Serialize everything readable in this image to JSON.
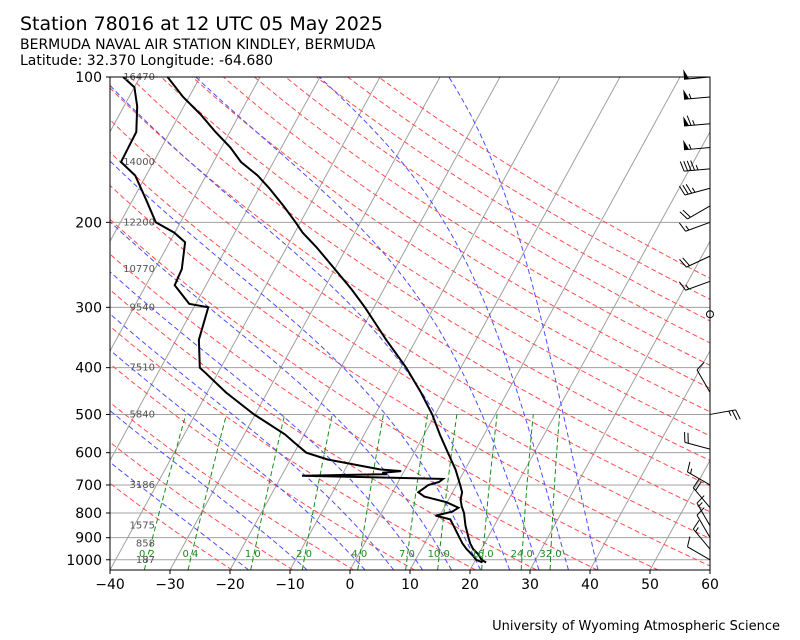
{
  "header": {
    "title": "Station 78016 at 12 UTC 05 May 2025",
    "station_name": "BERMUDA NAVAL AIR STATION KINDLEY, BERMUDA",
    "location": "Latitude: 32.370 Longitude: -64.680"
  },
  "footer": {
    "credit": "University of Wyoming Atmospheric Science"
  },
  "chart_data": {
    "type": "skew-t",
    "xlabel": "",
    "ylabel": "",
    "xlim": [
      -40,
      60
    ],
    "ylim": [
      1050,
      100
    ],
    "y_scale": "log",
    "grid": true,
    "x_ticks": [
      "−40",
      "−30",
      "−20",
      "−10",
      "0",
      "10",
      "20",
      "30",
      "40",
      "50",
      "60"
    ],
    "x_tick_values": [
      -40,
      -30,
      -20,
      -10,
      0,
      10,
      20,
      30,
      40,
      50,
      60
    ],
    "pressure_ticks": [
      100,
      200,
      300,
      400,
      500,
      600,
      700,
      800,
      900,
      1000
    ],
    "height_labels": [
      {
        "p": 100,
        "label": "16470"
      },
      {
        "p": 150,
        "label": "14000"
      },
      {
        "p": 200,
        "label": "12200"
      },
      {
        "p": 250,
        "label": "10770"
      },
      {
        "p": 300,
        "label": "9540"
      },
      {
        "p": 400,
        "label": "7510"
      },
      {
        "p": 500,
        "label": "5840"
      },
      {
        "p": 700,
        "label": "3186"
      },
      {
        "p": 850,
        "label": "1575"
      },
      {
        "p": 925,
        "label": "858"
      },
      {
        "p": 1000,
        "label": "187"
      }
    ],
    "mixing_ratio_labels": [
      "0.2",
      "0.4",
      "1.0",
      "2.0",
      "4.0",
      "7.0",
      "10.0",
      "16.0",
      "24.0",
      "32.0"
    ],
    "temperature": [
      [
        1013,
        22.0
      ],
      [
        1000,
        21.0
      ],
      [
        975,
        20.0
      ],
      [
        950,
        18.6
      ],
      [
        925,
        17.6
      ],
      [
        900,
        16.8
      ],
      [
        850,
        15.2
      ],
      [
        800,
        13.8
      ],
      [
        775,
        12.8
      ],
      [
        750,
        12.0
      ],
      [
        725,
        11.6
      ],
      [
        700,
        10.6
      ],
      [
        650,
        8.4
      ],
      [
        600,
        5.6
      ],
      [
        550,
        2.6
      ],
      [
        500,
        -0.5
      ],
      [
        450,
        -4.4
      ],
      [
        400,
        -9.1
      ],
      [
        350,
        -15.0
      ],
      [
        300,
        -21.5
      ],
      [
        275,
        -25.4
      ],
      [
        250,
        -30.0
      ],
      [
        225,
        -35.1
      ],
      [
        210,
        -38.7
      ],
      [
        200,
        -40.8
      ],
      [
        185,
        -44.3
      ],
      [
        170,
        -48.3
      ],
      [
        160,
        -51.4
      ],
      [
        150,
        -55.4
      ],
      [
        140,
        -58.5
      ],
      [
        130,
        -62.4
      ],
      [
        120,
        -66.3
      ],
      [
        110,
        -71.0
      ],
      [
        100,
        -75.4
      ]
    ],
    "dewpoint": [
      [
        1013,
        21.4
      ],
      [
        1000,
        20.1
      ],
      [
        975,
        18.9
      ],
      [
        950,
        17.5
      ],
      [
        925,
        16.3
      ],
      [
        900,
        15.3
      ],
      [
        850,
        13.2
      ],
      [
        825,
        12.1
      ],
      [
        810,
        9.3
      ],
      [
        795,
        11.7
      ],
      [
        780,
        12.4
      ],
      [
        760,
        9.9
      ],
      [
        740,
        5.7
      ],
      [
        725,
        4.3
      ],
      [
        700,
        5.3
      ],
      [
        690,
        6.8
      ],
      [
        680,
        7.2
      ],
      [
        670,
        -16.6
      ],
      [
        665,
        -2.6
      ],
      [
        660,
        -3.5
      ],
      [
        655,
        -0.5
      ],
      [
        650,
        -4.1
      ],
      [
        620,
        -13.8
      ],
      [
        600,
        -18.0
      ],
      [
        570,
        -21.1
      ],
      [
        550,
        -23.2
      ],
      [
        500,
        -30.2
      ],
      [
        450,
        -36.9
      ],
      [
        410,
        -42.1
      ],
      [
        400,
        -43.5
      ],
      [
        350,
        -46.2
      ],
      [
        300,
        -47.6
      ],
      [
        295,
        -51.1
      ],
      [
        270,
        -55.2
      ],
      [
        250,
        -55.5
      ],
      [
        220,
        -57.4
      ],
      [
        210,
        -60.1
      ],
      [
        200,
        -64.1
      ],
      [
        180,
        -67.7
      ],
      [
        160,
        -71.8
      ],
      [
        150,
        -75.4
      ],
      [
        130,
        -75.6
      ],
      [
        115,
        -77.8
      ],
      [
        105,
        -80.0
      ],
      [
        100,
        -82.8
      ]
    ],
    "wind_barbs": [
      {
        "p": 100,
        "speed_kt": 50,
        "dir_deg": 265
      },
      {
        "p": 110,
        "speed_kt": 55,
        "dir_deg": 265
      },
      {
        "p": 125,
        "speed_kt": 65,
        "dir_deg": 265
      },
      {
        "p": 140,
        "speed_kt": 55,
        "dir_deg": 265
      },
      {
        "p": 155,
        "speed_kt": 45,
        "dir_deg": 265
      },
      {
        "p": 170,
        "speed_kt": 35,
        "dir_deg": 255
      },
      {
        "p": 185,
        "speed_kt": 20,
        "dir_deg": 240
      },
      {
        "p": 200,
        "speed_kt": 15,
        "dir_deg": 250
      },
      {
        "p": 235,
        "speed_kt": 20,
        "dir_deg": 245
      },
      {
        "p": 265,
        "speed_kt": 15,
        "dir_deg": 250
      },
      {
        "p": 310,
        "speed_kt": 0,
        "dir_deg": 0
      },
      {
        "p": 450,
        "speed_kt": 10,
        "dir_deg": 330
      },
      {
        "p": 500,
        "speed_kt": 25,
        "dir_deg": 80
      },
      {
        "p": 590,
        "speed_kt": 20,
        "dir_deg": 285
      },
      {
        "p": 700,
        "speed_kt": 15,
        "dir_deg": 300
      },
      {
        "p": 780,
        "speed_kt": 20,
        "dir_deg": 320
      },
      {
        "p": 850,
        "speed_kt": 15,
        "dir_deg": 330
      },
      {
        "p": 900,
        "speed_kt": 10,
        "dir_deg": 330
      },
      {
        "p": 950,
        "speed_kt": 15,
        "dir_deg": 320
      },
      {
        "p": 1000,
        "speed_kt": 10,
        "dir_deg": 300
      }
    ],
    "colors": {
      "temperature": "#000000",
      "dewpoint": "#000000",
      "isotherm": "#a0a0a0",
      "isobar": "#a0a0a0",
      "dry_adiabat": "#ff4d4d",
      "moist_adiabat": "#4d4dff",
      "mixing_ratio": "#1a8c1a",
      "mixing_ratio_label": "#1a8c1a",
      "height_label": "#555555"
    }
  }
}
